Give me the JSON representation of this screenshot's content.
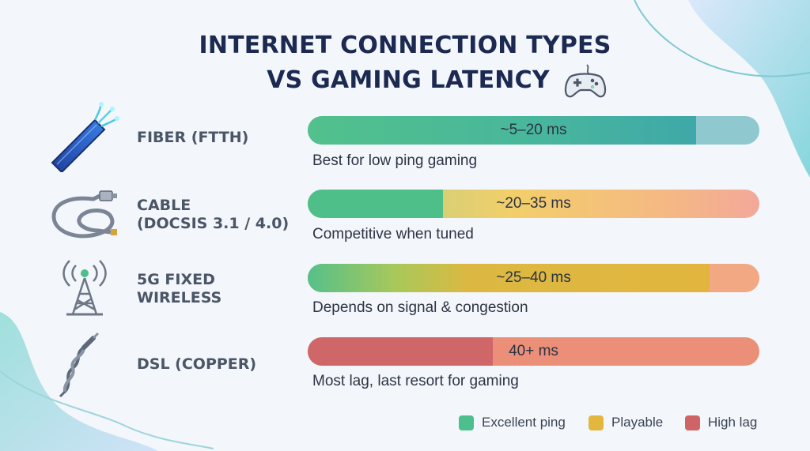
{
  "title": {
    "line1": "INTERNET CONNECTION TYPES",
    "line2": "VS GAMING LATENCY"
  },
  "colors": {
    "excellent": "#4cbf8c",
    "playable": "#e3b63e",
    "high_lag": "#cf6466"
  },
  "rows": [
    {
      "name": "FIBER (FTTH)",
      "icon": "fiber-optic-cable-icon",
      "latency": "~5–20 ms",
      "fill_fraction": 0.86,
      "desc": "Best for low ping gaming"
    },
    {
      "name": "CABLE\n(DOCSIS 3.1 / 4.0)",
      "icon": "coaxial-cable-icon",
      "latency": "~20–35 ms",
      "fill_fraction": 0.3,
      "desc": "Competitive when tuned"
    },
    {
      "name": "5G FIXED\nWIRELESS",
      "icon": "cell-tower-icon",
      "latency": "~25–40 ms",
      "fill_fraction": 0.89,
      "desc": "Depends on signal & congestion"
    },
    {
      "name": "DSL (COPPER)",
      "icon": "twisted-copper-wire-icon",
      "latency": "40+ ms",
      "fill_fraction": 0.41,
      "desc": "Most lag, last resort for gaming"
    }
  ],
  "legend": [
    {
      "label": "Excellent ping",
      "color": "#4cbf8c"
    },
    {
      "label": "Playable",
      "color": "#e3b63e"
    },
    {
      "label": "High lag",
      "color": "#cf6466"
    }
  ]
}
